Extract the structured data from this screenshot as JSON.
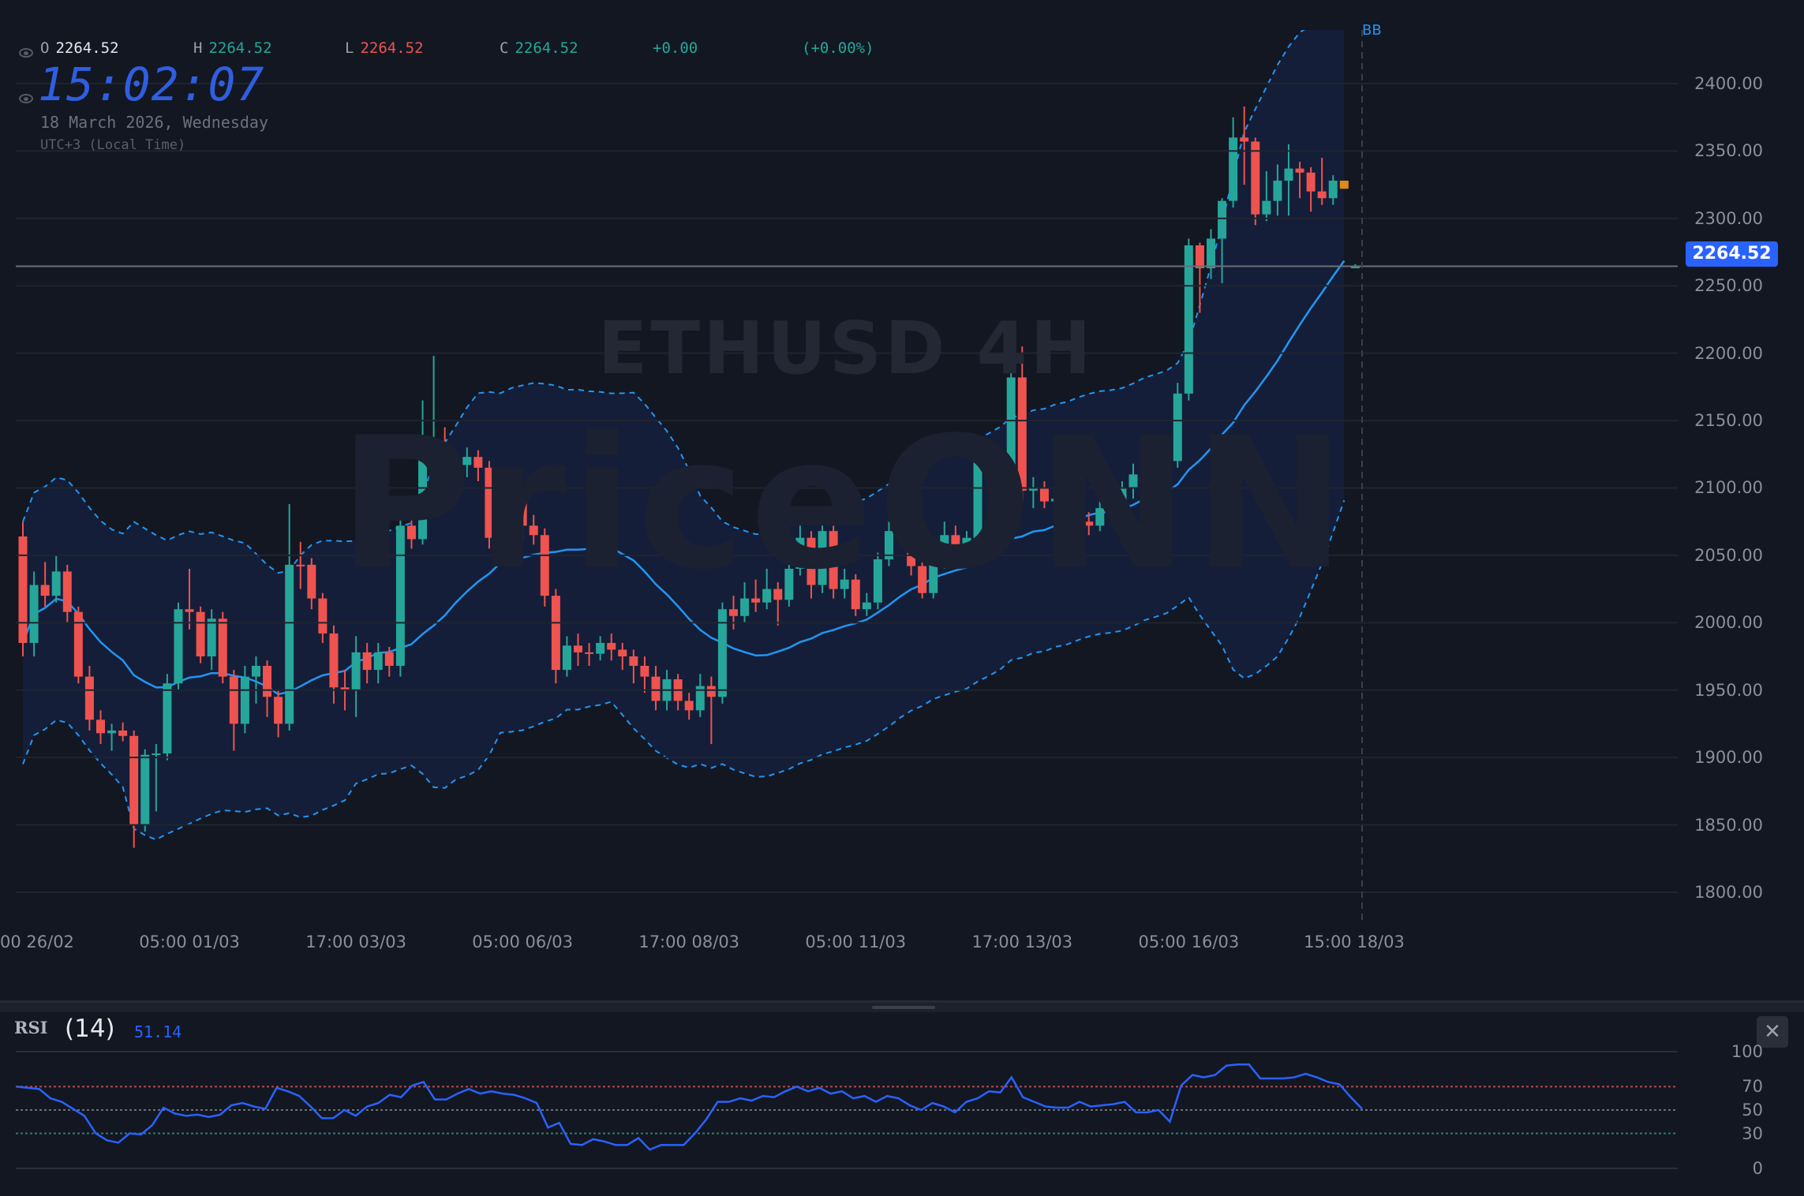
{
  "header": {
    "ohlc": {
      "o_label": "O",
      "o": "2264.52",
      "h_label": "H",
      "h": "2264.52",
      "l_label": "L",
      "l": "2264.52",
      "c_label": "C",
      "c": "2264.52",
      "change": "+0.00",
      "change_pct": "(+0.00%)"
    },
    "clock": "15:02:07",
    "date": "18 March 2026, Wednesday",
    "timezone": "UTC+3 (Local Time)"
  },
  "watermark": {
    "symbol": "ETHUSD 4H",
    "brand": "PriceONN"
  },
  "indicator_label": "BB",
  "current_price": "2264.52",
  "colors": {
    "up": "#26a69a",
    "down": "#ef5350",
    "highlight": "#e0891a",
    "ma": "#2196f3",
    "accent": "#2962ff",
    "clock": "#2f5ee0"
  },
  "price_axis": [
    "2400.00",
    "2350.00",
    "2300.00",
    "2250.00",
    "2200.00",
    "2150.00",
    "2100.00",
    "2050.00",
    "2000.00",
    "1950.00",
    "1900.00",
    "1850.00",
    "1800.00"
  ],
  "time_axis": [
    "00 26/02",
    "05:00 01/03",
    "17:00 03/03",
    "05:00 06/03",
    "17:00 08/03",
    "05:00 11/03",
    "17:00 13/03",
    "05:00 16/03",
    "15:00 18/03"
  ],
  "rsi": {
    "title": "RSI",
    "length": "(14)",
    "value": "51.14",
    "levels": [
      "100",
      "70",
      "50",
      "30",
      "0"
    ],
    "close_label": "✕"
  },
  "chart_data": {
    "type": "candlestick",
    "symbol": "ETHUSD",
    "interval": "4H",
    "ylim": [
      1800,
      2400
    ],
    "highlight_index": 119,
    "candles": [
      [
        2064,
        2075,
        1975,
        1985
      ],
      [
        1985,
        2038,
        1975,
        2028
      ],
      [
        2028,
        2045,
        2012,
        2020
      ],
      [
        2020,
        2050,
        2015,
        2038
      ],
      [
        2038,
        2043,
        2000,
        2008
      ],
      [
        2008,
        2012,
        1955,
        1960
      ],
      [
        1960,
        1968,
        1920,
        1928
      ],
      [
        1928,
        1935,
        1910,
        1918
      ],
      [
        1918,
        1925,
        1905,
        1920
      ],
      [
        1920,
        1926,
        1912,
        1916
      ],
      [
        1916,
        1920,
        1833,
        1850
      ],
      [
        1850,
        1906,
        1845,
        1902
      ],
      [
        1902,
        1910,
        1860,
        1903
      ],
      [
        1903,
        1962,
        1898,
        1955
      ],
      [
        1955,
        2015,
        1950,
        2010
      ],
      [
        2010,
        2040,
        1995,
        2008
      ],
      [
        2008,
        2012,
        1970,
        1975
      ],
      [
        1975,
        2010,
        1965,
        2003
      ],
      [
        2003,
        2008,
        1955,
        1960
      ],
      [
        1960,
        1965,
        1905,
        1925
      ],
      [
        1925,
        1968,
        1918,
        1960
      ],
      [
        1960,
        1975,
        1940,
        1968
      ],
      [
        1968,
        1972,
        1930,
        1945
      ],
      [
        1945,
        1950,
        1915,
        1925
      ],
      [
        1925,
        2088,
        1920,
        2043
      ],
      [
        2043,
        2060,
        2025,
        2042
      ],
      [
        2043,
        2048,
        2010,
        2018
      ],
      [
        2018,
        2022,
        1985,
        1992
      ],
      [
        1992,
        1998,
        1940,
        1952
      ],
      [
        1952,
        1965,
        1935,
        1950
      ],
      [
        1950,
        1990,
        1930,
        1978
      ],
      [
        1978,
        1985,
        1955,
        1965
      ],
      [
        1965,
        1985,
        1955,
        1978
      ],
      [
        1978,
        1982,
        1960,
        1968
      ],
      [
        1968,
        2085,
        1960,
        2072
      ],
      [
        2072,
        2080,
        2055,
        2062
      ],
      [
        2062,
        2165,
        2058,
        2125
      ],
      [
        2125,
        2198,
        2118,
        2130
      ],
      [
        2130,
        2145,
        2100,
        2110
      ],
      [
        2110,
        2122,
        2095,
        2117
      ],
      [
        2117,
        2130,
        2108,
        2123
      ],
      [
        2123,
        2128,
        2105,
        2115
      ],
      [
        2115,
        2120,
        2055,
        2063
      ],
      [
        2063,
        2090,
        2058,
        2083
      ],
      [
        2083,
        2092,
        2068,
        2090
      ],
      [
        2090,
        2095,
        2060,
        2072
      ],
      [
        2072,
        2080,
        2058,
        2065
      ],
      [
        2065,
        2070,
        2012,
        2020
      ],
      [
        2020,
        2025,
        1955,
        1965
      ],
      [
        1965,
        1990,
        1960,
        1983
      ],
      [
        1983,
        1992,
        1968,
        1978
      ],
      [
        1978,
        1985,
        1968,
        1977
      ],
      [
        1977,
        1990,
        1972,
        1985
      ],
      [
        1985,
        1992,
        1972,
        1980
      ],
      [
        1980,
        1985,
        1965,
        1975
      ],
      [
        1975,
        1980,
        1955,
        1968
      ],
      [
        1968,
        1975,
        1948,
        1960
      ],
      [
        1960,
        1968,
        1935,
        1942
      ],
      [
        1942,
        1965,
        1935,
        1958
      ],
      [
        1958,
        1962,
        1935,
        1942
      ],
      [
        1942,
        1948,
        1928,
        1935
      ],
      [
        1935,
        1962,
        1930,
        1953
      ],
      [
        1953,
        1960,
        1910,
        1945
      ],
      [
        1945,
        2015,
        1940,
        2010
      ],
      [
        2010,
        2020,
        1995,
        2005
      ],
      [
        2005,
        2030,
        2000,
        2018
      ],
      [
        2018,
        2032,
        2008,
        2015
      ],
      [
        2015,
        2040,
        2010,
        2025
      ],
      [
        2025,
        2030,
        1998,
        2017
      ],
      [
        2017,
        2045,
        2012,
        2040
      ],
      [
        2040,
        2075,
        2035,
        2063
      ],
      [
        2063,
        2068,
        2018,
        2028
      ],
      [
        2028,
        2078,
        2022,
        2068
      ],
      [
        2068,
        2072,
        2018,
        2025
      ],
      [
        2025,
        2040,
        2018,
        2032
      ],
      [
        2032,
        2036,
        2005,
        2010
      ],
      [
        2010,
        2022,
        2005,
        2015
      ],
      [
        2015,
        2052,
        2010,
        2047
      ],
      [
        2047,
        2075,
        2042,
        2068
      ],
      [
        2068,
        2080,
        2058,
        2070
      ],
      [
        2070,
        2076,
        2035,
        2042
      ],
      [
        2042,
        2048,
        2018,
        2022
      ],
      [
        2022,
        2055,
        2018,
        2048
      ],
      [
        2048,
        2075,
        2040,
        2065
      ],
      [
        2065,
        2072,
        2050,
        2058
      ],
      [
        2058,
        2068,
        2052,
        2063
      ],
      [
        2063,
        2135,
        2058,
        2122
      ],
      [
        2122,
        2128,
        2100,
        2108
      ],
      [
        2108,
        2115,
        2090,
        2110
      ],
      [
        2110,
        2195,
        2105,
        2182
      ],
      [
        2182,
        2205,
        2090,
        2098
      ],
      [
        2098,
        2108,
        2085,
        2100
      ],
      [
        2100,
        2105,
        2085,
        2090
      ],
      [
        2090,
        2098,
        2080,
        2092
      ],
      [
        2092,
        2096,
        2058,
        2065
      ],
      [
        2065,
        2082,
        2060,
        2075
      ],
      [
        2075,
        2082,
        2065,
        2072
      ],
      [
        2072,
        2090,
        2068,
        2085
      ],
      [
        2085,
        2092,
        2078,
        2085
      ],
      [
        2085,
        2105,
        2080,
        2100
      ],
      [
        2100,
        2118,
        2092,
        2110
      ],
      [
        2110,
        2115,
        2098,
        2108
      ],
      [
        2108,
        2112,
        2090,
        2098
      ],
      [
        2098,
        2128,
        2095,
        2120
      ],
      [
        2120,
        2178,
        2115,
        2170
      ],
      [
        2170,
        2285,
        2165,
        2280
      ],
      [
        2280,
        2282,
        2230,
        2263
      ],
      [
        2263,
        2292,
        2255,
        2285
      ],
      [
        2285,
        2315,
        2252,
        2313
      ],
      [
        2313,
        2375,
        2308,
        2360
      ],
      [
        2360,
        2383,
        2325,
        2357
      ],
      [
        2357,
        2360,
        2295,
        2303
      ],
      [
        2303,
        2335,
        2298,
        2313
      ],
      [
        2313,
        2340,
        2302,
        2328
      ],
      [
        2328,
        2355,
        2302,
        2337
      ],
      [
        2337,
        2342,
        2315,
        2334
      ],
      [
        2334,
        2338,
        2305,
        2320
      ],
      [
        2320,
        2345,
        2310,
        2315
      ],
      [
        2315,
        2332,
        2310,
        2328
      ],
      [
        2322,
        2328,
        2322,
        2328
      ],
      [
        2263,
        2266,
        2263,
        2265
      ]
    ],
    "rsi_values": [
      70,
      69,
      68,
      60,
      57,
      51,
      45,
      30,
      24,
      22,
      30,
      29,
      37,
      52,
      47,
      45,
      46,
      44,
      46,
      54,
      56,
      53,
      51,
      69,
      66,
      62,
      53,
      43,
      43,
      50,
      45,
      53,
      56,
      63,
      61,
      71,
      74,
      59,
      59,
      64,
      68,
      64,
      66,
      64,
      63,
      60,
      56,
      35,
      39,
      21,
      20,
      25,
      23,
      20,
      20,
      26,
      16,
      20,
      20,
      20,
      30,
      42,
      57,
      57,
      60,
      58,
      62,
      61,
      66,
      70,
      66,
      69,
      64,
      66,
      60,
      62,
      57,
      62,
      60,
      54,
      50,
      56,
      53,
      48,
      57,
      60,
      66,
      65,
      78,
      61,
      57,
      53,
      52,
      52,
      57,
      53,
      54,
      55,
      57,
      48,
      48,
      50,
      40,
      71,
      80,
      78,
      80,
      88,
      89,
      89,
      77,
      77,
      77,
      78,
      81,
      78,
      74,
      72,
      61,
      51
    ],
    "rsi_ylim": [
      0,
      100
    ]
  }
}
